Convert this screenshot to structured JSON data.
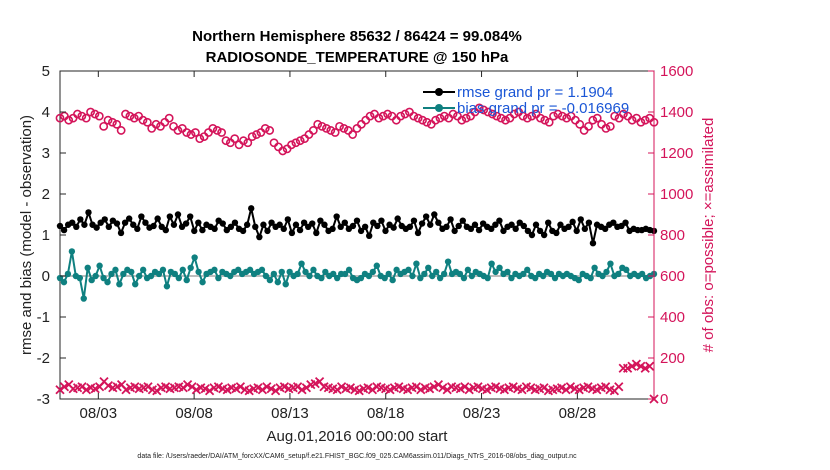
{
  "chart_data": {
    "type": "line",
    "title_line1": "Northern Hemisphere 85632 / 86424 = 99.084%",
    "title_line2": "RADIOSONDE_TEMPERATURE @ 150 hPa",
    "xlabel": "Aug.01,2016 00:00:00 start",
    "ylabel_left": "rmse and bias (model - observation)",
    "ylabel_right": "# of obs: o=possible; ×=assimilated",
    "ylim_left": [
      -3,
      5
    ],
    "ylim_right": [
      0,
      1600
    ],
    "yticks_left": [
      "5",
      "4",
      "3",
      "2",
      "1",
      "0",
      "-1",
      "-2",
      "-3"
    ],
    "yticks_right": [
      "1600",
      "1400",
      "1200",
      "1000",
      "800",
      "600",
      "400",
      "200",
      "0"
    ],
    "x_ticks": [
      {
        "label": "08/03",
        "day": 3.0
      },
      {
        "label": "08/08",
        "day": 8.0
      },
      {
        "label": "08/13",
        "day": 13.0
      },
      {
        "label": "08/18",
        "day": 18.0
      },
      {
        "label": "08/23",
        "day": 23.0
      },
      {
        "label": "08/28",
        "day": 28.0
      }
    ],
    "x_start_day": 1.0,
    "x_step_days": 0.25,
    "x_end_day": 32.0,
    "legend": [
      {
        "label": "rmse grand pr = 1.1904",
        "color": "#000000"
      },
      {
        "label": "bias grand pr = -0.016969",
        "color": "#0f8080"
      }
    ],
    "footnote": "data file: /Users/raeder/DAI/ATM_forcXX/CAM6_setup/f.e21.FHIST_BGC.f09_025.CAM6assim.011/Diags_NTrS_2016-08/obs_diag_output.nc",
    "series": [
      {
        "name": "rmse",
        "axis": "left",
        "color": "#000000",
        "values": [
          1.22,
          1.12,
          1.25,
          1.3,
          1.2,
          1.38,
          1.25,
          1.55,
          1.25,
          1.18,
          1.3,
          1.38,
          1.2,
          1.35,
          1.28,
          1.05,
          1.3,
          1.4,
          1.25,
          1.15,
          1.45,
          1.3,
          1.18,
          1.22,
          1.4,
          1.2,
          1.12,
          1.45,
          1.25,
          1.5,
          1.2,
          1.28,
          1.45,
          1.1,
          1.3,
          1.12,
          1.25,
          1.2,
          1.15,
          1.35,
          1.28,
          1.12,
          1.2,
          1.3,
          1.15,
          1.1,
          1.25,
          1.65,
          1.2,
          0.95,
          1.25,
          1.1,
          1.3,
          1.2,
          1.25,
          1.15,
          1.38,
          1.05,
          1.25,
          1.12,
          1.3,
          1.2,
          1.28,
          1.05,
          1.35,
          1.25,
          1.1,
          1.15,
          1.45,
          1.2,
          1.3,
          1.15,
          1.22,
          1.35,
          1.1,
          1.2,
          0.98,
          1.3,
          1.22,
          1.35,
          1.1,
          1.25,
          1.18,
          1.4,
          1.22,
          1.15,
          1.2,
          1.35,
          1.05,
          1.28,
          1.45,
          1.25,
          1.5,
          1.3,
          1.15,
          1.2,
          1.38,
          1.1,
          1.22,
          1.35,
          1.2,
          1.15,
          1.25,
          1.12,
          1.28,
          1.2,
          1.15,
          1.25,
          1.35,
          1.1,
          1.2,
          1.25,
          1.15,
          1.3,
          1.22,
          1.1,
          1.0,
          1.25,
          1.1,
          1.0,
          1.3,
          1.1,
          1.05,
          1.25,
          1.15,
          1.2,
          1.32,
          1.1,
          1.38,
          1.15,
          1.3,
          0.8,
          1.25,
          1.2,
          1.15,
          1.25,
          1.3,
          1.2,
          1.22,
          1.3,
          1.1,
          1.15,
          1.12,
          1.12,
          1.15,
          1.12,
          1.1
        ]
      },
      {
        "name": "bias",
        "axis": "left",
        "color": "#0f8080",
        "values": [
          -0.05,
          -0.15,
          0.05,
          0.6,
          0.0,
          -0.05,
          -0.55,
          0.2,
          -0.1,
          0.0,
          0.25,
          -0.05,
          -0.15,
          0.05,
          0.15,
          -0.2,
          0.05,
          0.15,
          0.1,
          -0.2,
          0.0,
          0.15,
          -0.05,
          0.0,
          0.1,
          0.05,
          0.15,
          -0.25,
          0.1,
          0.05,
          -0.05,
          0.15,
          -0.1,
          0.2,
          0.45,
          0.1,
          -0.15,
          0.05,
          0.1,
          0.15,
          -0.05,
          0.1,
          0.05,
          0.0,
          0.1,
          0.15,
          0.05,
          0.1,
          0.15,
          0.05,
          0.1,
          0.15,
          0.0,
          -0.1,
          0.05,
          -0.15,
          0.1,
          -0.2,
          0.1,
          0.0,
          0.05,
          0.3,
          0.1,
          0.0,
          0.15,
          0.0,
          -0.05,
          0.1,
          0.0,
          0.05,
          -0.05,
          0.05,
          0.05,
          0.15,
          -0.05,
          -0.1,
          -0.05,
          0.05,
          0.0,
          0.1,
          0.25,
          0.0,
          -0.05,
          0.05,
          -0.1,
          0.15,
          0.05,
          0.1,
          0.15,
          0.0,
          0.3,
          -0.05,
          0.05,
          0.2,
          0.0,
          0.1,
          -0.05,
          0.05,
          0.35,
          0.05,
          0.1,
          0.05,
          -0.05,
          0.15,
          0.0,
          0.1,
          0.05,
          0.0,
          -0.05,
          0.3,
          0.1,
          0.2,
          0.05,
          0.1,
          -0.05,
          0.05,
          0.0,
          0.05,
          0.15,
          0.0,
          -0.05,
          0.05,
          0.0,
          0.1,
          0.05,
          -0.05,
          0.05,
          0.0,
          0.05,
          0.0,
          -0.05,
          -0.1,
          0.05,
          0.0,
          -0.05,
          0.2,
          0.05,
          0.0,
          0.1,
          0.3,
          0.0,
          0.05,
          0.2,
          0.15,
          0.0,
          0.05,
          0.0,
          0.05,
          -0.05,
          0.0,
          0.05
        ]
      },
      {
        "name": "possible",
        "axis": "right",
        "color": "#d4145a",
        "marker": "o",
        "values": [
          1370,
          1380,
          1360,
          1370,
          1390,
          1380,
          1370,
          1400,
          1390,
          1380,
          1330,
          1360,
          1350,
          1340,
          1310,
          1390,
          1380,
          1370,
          1380,
          1360,
          1350,
          1320,
          1340,
          1330,
          1350,
          1370,
          1330,
          1310,
          1320,
          1300,
          1290,
          1300,
          1270,
          1280,
          1300,
          1320,
          1310,
          1300,
          1260,
          1250,
          1270,
          1240,
          1260,
          1250,
          1280,
          1290,
          1300,
          1320,
          1310,
          1250,
          1230,
          1210,
          1220,
          1240,
          1250,
          1260,
          1270,
          1290,
          1310,
          1340,
          1330,
          1320,
          1310,
          1300,
          1330,
          1320,
          1310,
          1290,
          1320,
          1340,
          1360,
          1380,
          1390,
          1370,
          1380,
          1390,
          1380,
          1360,
          1380,
          1390,
          1400,
          1380,
          1370,
          1360,
          1350,
          1340,
          1360,
          1370,
          1380,
          1370,
          1390,
          1380,
          1360,
          1370,
          1380,
          1400,
          1420,
          1410,
          1400,
          1390,
          1380,
          1370,
          1360,
          1370,
          1390,
          1400,
          1380,
          1370,
          1380,
          1390,
          1370,
          1360,
          1350,
          1380,
          1390,
          1380,
          1370,
          1380,
          1360,
          1340,
          1310,
          1330,
          1360,
          1370,
          1340,
          1320,
          1330,
          1380,
          1370,
          1390,
          1380,
          1360,
          1370,
          1350,
          1360,
          1370,
          1350
        ]
      },
      {
        "name": "assimilated",
        "axis": "right",
        "color": "#d4145a",
        "marker": "x",
        "values": [
          45,
          60,
          70,
          50,
          55,
          60,
          45,
          55,
          50,
          60,
          85,
          65,
          55,
          60,
          70,
          45,
          55,
          60,
          50,
          55,
          60,
          45,
          40,
          55,
          60,
          50,
          55,
          60,
          55,
          70,
          60,
          45,
          55,
          50,
          40,
          55,
          60,
          50,
          45,
          55,
          50,
          60,
          45,
          40,
          50,
          55,
          45,
          60,
          50,
          40,
          55,
          60,
          50,
          55,
          60,
          45,
          55,
          70,
          75,
          85,
          60,
          55,
          50,
          45,
          60,
          50,
          55,
          45,
          40,
          50,
          55,
          45,
          60,
          55,
          50,
          45,
          55,
          60,
          50,
          45,
          55,
          60,
          45,
          55,
          50,
          60,
          70,
          55,
          45,
          60,
          55,
          50,
          60,
          45,
          55,
          60,
          50,
          45,
          55,
          60,
          50,
          45,
          55,
          60,
          50,
          45,
          60,
          55,
          45,
          50,
          55,
          40,
          45,
          50,
          55,
          45,
          60,
          50,
          45,
          55,
          60,
          50,
          45,
          55,
          60,
          45,
          40,
          60,
          150,
          150,
          160,
          170,
          160,
          150,
          160,
          0
        ]
      }
    ]
  }
}
